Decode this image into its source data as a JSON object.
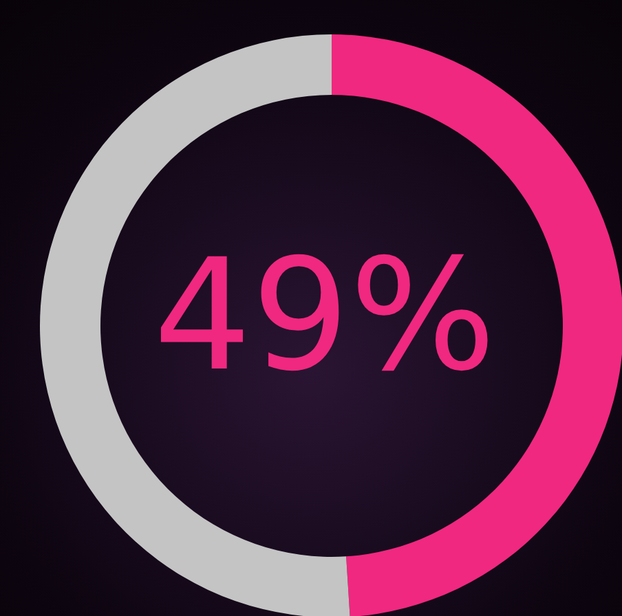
{
  "chart_data": {
    "type": "donut",
    "categories": [
      null,
      null
    ],
    "values": [
      49,
      51
    ],
    "colors": [
      "#f0287f",
      "#c4c4c4"
    ],
    "annotations": [
      "49%"
    ],
    "legend": false
  }
}
